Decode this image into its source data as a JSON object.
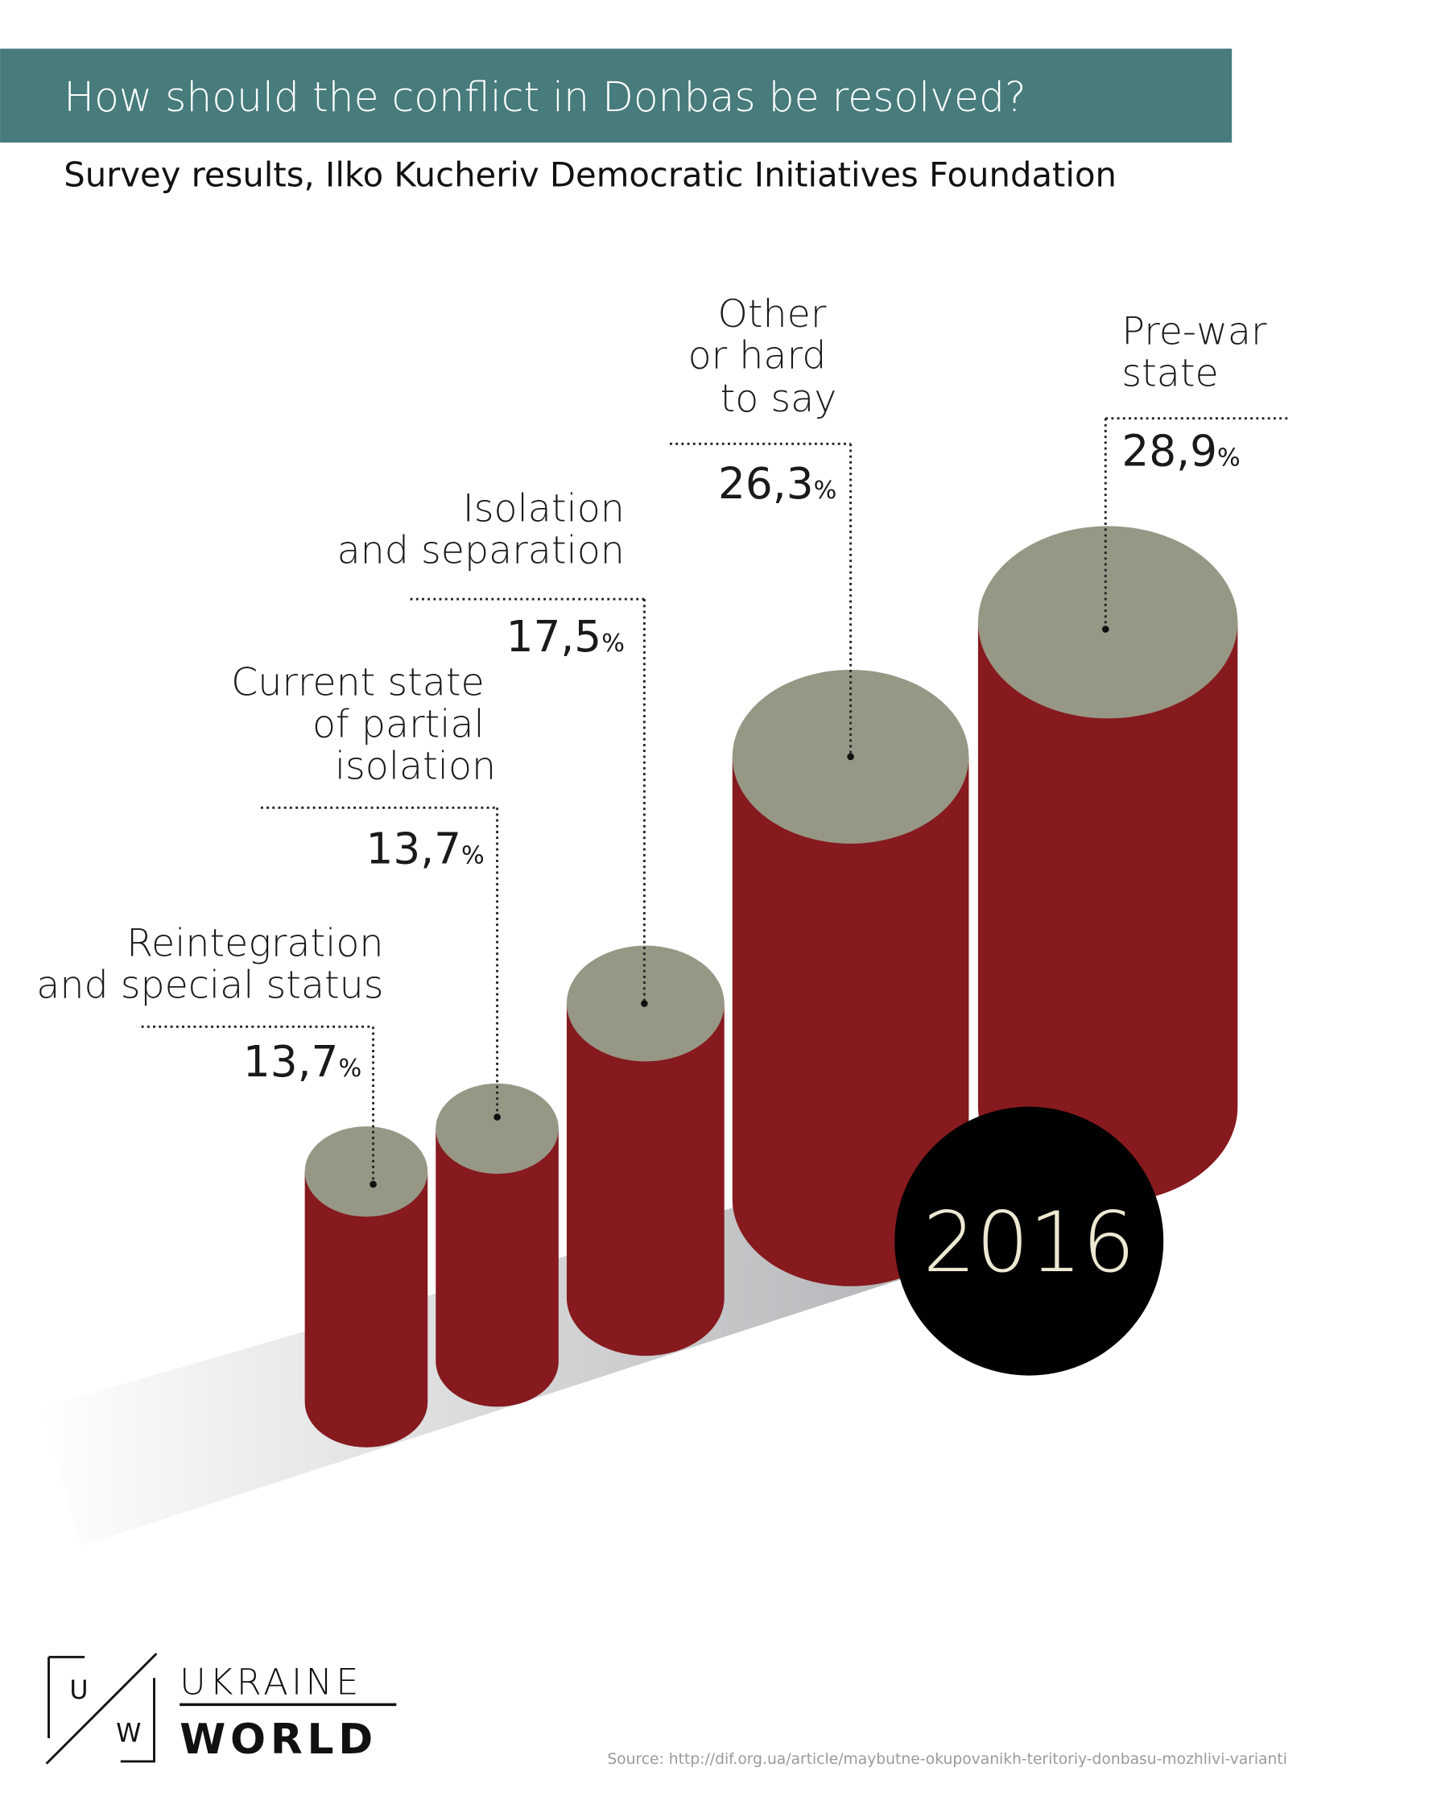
{
  "header": {
    "title": "How should the conflict in Donbas be resolved?",
    "subtitle": "Survey results,  Ilko Kucheriv Democratic Initiatives Foundation"
  },
  "colors": {
    "header_bg": "#477b7c",
    "cylinder_body": "#861a1e",
    "cylinder_top": "#979786",
    "badge_bg": "#000000",
    "badge_text": "#ece8d2"
  },
  "chart_data": {
    "type": "bar",
    "style": "3d-cylinders",
    "unit": "%",
    "categories": [
      [
        "Reintegration",
        "and special status"
      ],
      [
        "Current state",
        "of partial",
        "isolation"
      ],
      [
        "Isolation",
        "and separation"
      ],
      [
        "Other",
        "or hard",
        "to say"
      ],
      [
        "Pre-war",
        "state"
      ]
    ],
    "values": [
      13.7,
      13.7,
      17.5,
      26.3,
      28.9
    ],
    "value_labels": [
      "13,7",
      "13,7",
      "17,5",
      "26,3",
      "28,9"
    ],
    "year_badge": "2016"
  },
  "logo": {
    "mark_top": "U",
    "mark_bottom": "W",
    "line1": "UKRAINE",
    "line2": "WORLD"
  },
  "source": "Source: http://dif.org.ua/article/maybutne-okupovanikh-teritoriy-donbasu-mozhlivi-varianti"
}
